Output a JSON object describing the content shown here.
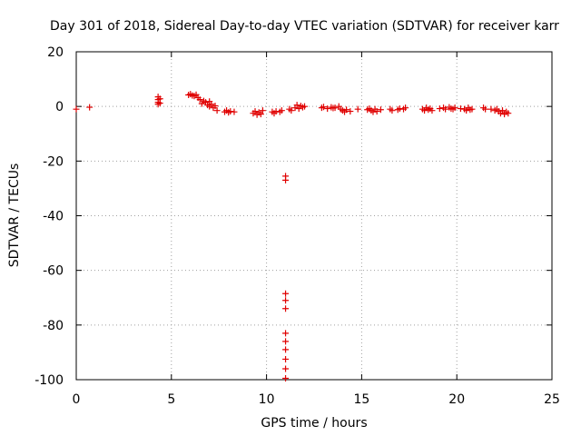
{
  "chart_data": {
    "type": "scatter",
    "title": "Day 301 of 2018, Sidereal Day-to-day VTEC variation (SDTVAR) for receiver karr",
    "xlabel": "GPS time / hours",
    "ylabel": "SDTVAR / TECUs",
    "xlim": [
      0,
      25
    ],
    "ylim": [
      -100,
      20
    ],
    "xticks": [
      0,
      5,
      10,
      15,
      20,
      25
    ],
    "yticks": [
      -100,
      -80,
      -60,
      -40,
      -20,
      0,
      20
    ],
    "xtick_labels": [
      "0",
      "5",
      "10",
      "15",
      "20",
      "25"
    ],
    "ytick_labels": [
      "-100",
      "-80",
      "-60",
      "-40",
      "-20",
      "0",
      "20"
    ],
    "grid": true,
    "marker": "plus",
    "color": "#e00000",
    "series": [
      {
        "name": "SDTVAR",
        "points": [
          [
            0.0,
            -1.0
          ],
          [
            0.7,
            -0.3
          ],
          [
            4.3,
            3.5
          ],
          [
            4.3,
            2.5
          ],
          [
            4.3,
            1.5
          ],
          [
            4.3,
            0.8
          ],
          [
            4.4,
            2.8
          ],
          [
            4.4,
            1.2
          ],
          [
            5.9,
            4.2
          ],
          [
            6.0,
            4.5
          ],
          [
            6.1,
            4.0
          ],
          [
            6.2,
            3.8
          ],
          [
            6.3,
            4.3
          ],
          [
            6.4,
            3.2
          ],
          [
            6.5,
            2.5
          ],
          [
            6.6,
            1.0
          ],
          [
            6.7,
            2.0
          ],
          [
            6.8,
            1.5
          ],
          [
            6.9,
            0.5
          ],
          [
            7.0,
            1.8
          ],
          [
            7.0,
            0.0
          ],
          [
            7.1,
            0.8
          ],
          [
            7.2,
            -0.5
          ],
          [
            7.4,
            -1.5
          ],
          [
            7.3,
            0.2
          ],
          [
            7.8,
            -2.0
          ],
          [
            7.9,
            -1.5
          ],
          [
            8.0,
            -2.2
          ],
          [
            8.1,
            -1.8
          ],
          [
            8.3,
            -2.0
          ],
          [
            9.3,
            -2.5
          ],
          [
            9.4,
            -1.8
          ],
          [
            9.5,
            -3.0
          ],
          [
            9.6,
            -2.2
          ],
          [
            9.7,
            -2.8
          ],
          [
            9.8,
            -1.5
          ],
          [
            10.3,
            -2.0
          ],
          [
            10.4,
            -2.5
          ],
          [
            10.5,
            -1.8
          ],
          [
            10.7,
            -2.0
          ],
          [
            10.8,
            -1.5
          ],
          [
            11.0,
            -25.5
          ],
          [
            11.0,
            -27.0
          ],
          [
            11.0,
            -68.5
          ],
          [
            11.0,
            -71.0
          ],
          [
            11.0,
            -74.0
          ],
          [
            11.0,
            -83.0
          ],
          [
            11.0,
            -86.0
          ],
          [
            11.0,
            -89.0
          ],
          [
            11.0,
            -92.5
          ],
          [
            11.0,
            -96.0
          ],
          [
            11.0,
            -99.5
          ],
          [
            11.2,
            -1.0
          ],
          [
            11.3,
            -1.5
          ],
          [
            11.5,
            -0.5
          ],
          [
            11.6,
            0.5
          ],
          [
            11.7,
            -0.8
          ],
          [
            11.8,
            0.2
          ],
          [
            11.9,
            -0.3
          ],
          [
            12.0,
            0.0
          ],
          [
            12.9,
            -0.5
          ],
          [
            13.0,
            -0.2
          ],
          [
            13.2,
            -0.8
          ],
          [
            13.4,
            -0.3
          ],
          [
            13.5,
            -0.6
          ],
          [
            13.6,
            -0.5
          ],
          [
            13.8,
            0.0
          ],
          [
            13.9,
            -1.0
          ],
          [
            14.0,
            -1.5
          ],
          [
            14.1,
            -2.0
          ],
          [
            14.2,
            -1.2
          ],
          [
            14.4,
            -1.8
          ],
          [
            14.8,
            -1.0
          ],
          [
            15.3,
            -1.2
          ],
          [
            15.4,
            -0.8
          ],
          [
            15.5,
            -1.5
          ],
          [
            15.6,
            -2.0
          ],
          [
            15.7,
            -1.0
          ],
          [
            15.8,
            -1.8
          ],
          [
            16.0,
            -1.2
          ],
          [
            16.5,
            -1.0
          ],
          [
            16.6,
            -1.5
          ],
          [
            16.9,
            -1.2
          ],
          [
            17.0,
            -0.8
          ],
          [
            17.2,
            -1.0
          ],
          [
            17.3,
            -0.5
          ],
          [
            18.2,
            -1.0
          ],
          [
            18.3,
            -1.5
          ],
          [
            18.4,
            -0.5
          ],
          [
            18.5,
            -1.2
          ],
          [
            18.6,
            -0.8
          ],
          [
            18.7,
            -1.5
          ],
          [
            19.1,
            -0.8
          ],
          [
            19.3,
            -0.5
          ],
          [
            19.4,
            -1.0
          ],
          [
            19.6,
            -0.3
          ],
          [
            19.7,
            -0.8
          ],
          [
            19.8,
            -1.0
          ],
          [
            19.9,
            -0.5
          ],
          [
            20.2,
            -0.8
          ],
          [
            20.4,
            -1.0
          ],
          [
            20.5,
            -1.5
          ],
          [
            20.6,
            -0.5
          ],
          [
            20.7,
            -1.2
          ],
          [
            20.8,
            -1.0
          ],
          [
            21.4,
            -0.5
          ],
          [
            21.5,
            -1.0
          ],
          [
            21.8,
            -1.0
          ],
          [
            22.0,
            -1.5
          ],
          [
            22.1,
            -1.0
          ],
          [
            22.2,
            -1.8
          ],
          [
            22.3,
            -2.5
          ],
          [
            22.4,
            -1.5
          ],
          [
            22.5,
            -2.8
          ],
          [
            22.6,
            -2.0
          ],
          [
            22.7,
            -2.5
          ]
        ]
      }
    ]
  }
}
